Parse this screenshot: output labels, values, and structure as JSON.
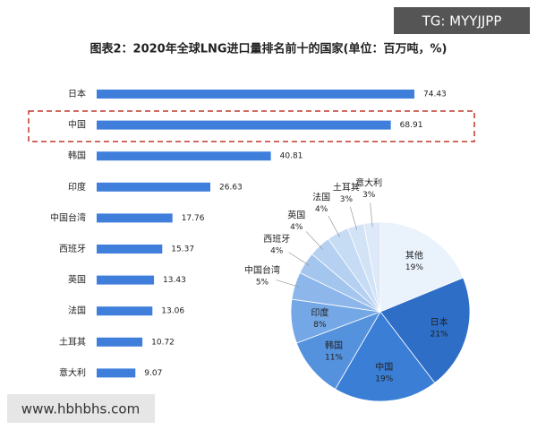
{
  "overlay": {
    "top_right": "TG: MYYJJPP",
    "bottom_left": "www.hbhbhs.com"
  },
  "chart_data": [
    {
      "type": "bar",
      "title": "图表2：2020年全球LNG进口量排名前十的国家(单位：百万吨，%)",
      "categories": [
        "日本",
        "中国",
        "韩国",
        "印度",
        "中国台湾",
        "西班牙",
        "英国",
        "法国",
        "土耳其",
        "意大利"
      ],
      "values": [
        74.43,
        68.91,
        40.81,
        26.63,
        17.76,
        15.37,
        13.43,
        13.06,
        10.72,
        9.07
      ],
      "color": "#3f7fdb"
    },
    {
      "type": "pie",
      "categories": [
        "其他",
        "日本",
        "中国",
        "韩国",
        "印度",
        "中国台湾",
        "西班牙",
        "英国",
        "法国",
        "土耳其",
        "意大利"
      ],
      "values": [
        19,
        21,
        19,
        11,
        8,
        5,
        4,
        4,
        4,
        3,
        3
      ],
      "value_labels": [
        "19%",
        "21%",
        "19%",
        "11%",
        "8%",
        "5%",
        "4%",
        "4%",
        "4%",
        "3%",
        "3%"
      ],
      "colors": [
        "#eaf2fc",
        "#2e6ec6",
        "#3a7ed6",
        "#5592de",
        "#74a7e5",
        "#8db7ea",
        "#a3c5ee",
        "#b5d0f1",
        "#c6dbf4",
        "#d3e3f6",
        "#dde9f8"
      ]
    }
  ]
}
